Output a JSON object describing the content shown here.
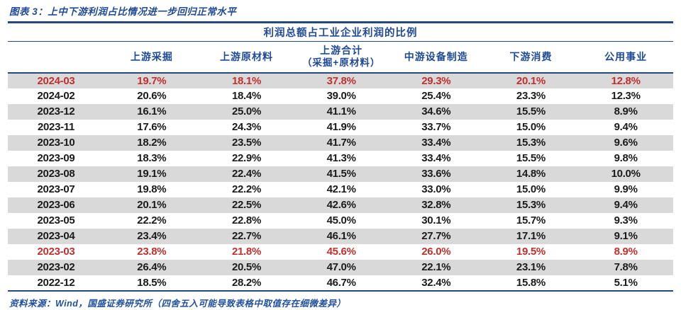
{
  "figure": {
    "title": "图表 3：上中下游利润占比情况进一步回归正常水平",
    "source_note": "资料来源：Wind，国盛证券研究所（四舍五入可能导致表格中取值存在细微差异）"
  },
  "table": {
    "caption": "利润总额占工业企业利润的比例",
    "columns": [
      {
        "label": "上游采掘"
      },
      {
        "label": "上游原材料"
      },
      {
        "label": "上游合计",
        "sub": "（采掘+原材料）"
      },
      {
        "label": "中游设备制造"
      },
      {
        "label": "下游消费"
      },
      {
        "label": "公用事业"
      }
    ],
    "rows": [
      {
        "date": "2024-03",
        "values": [
          "19.7%",
          "18.1%",
          "37.8%",
          "29.3%",
          "20.1%",
          "12.8%"
        ],
        "shaded": true,
        "red": true
      },
      {
        "date": "2024-02",
        "values": [
          "20.6%",
          "18.4%",
          "39.0%",
          "25.4%",
          "23.3%",
          "12.3%"
        ],
        "shaded": false,
        "red": false
      },
      {
        "date": "2023-12",
        "values": [
          "16.1%",
          "25.0%",
          "41.1%",
          "34.6%",
          "15.5%",
          "8.9%"
        ],
        "shaded": true,
        "red": false
      },
      {
        "date": "2023-11",
        "values": [
          "17.6%",
          "24.3%",
          "41.9%",
          "33.7%",
          "15.0%",
          "9.4%"
        ],
        "shaded": false,
        "red": false
      },
      {
        "date": "2023-10",
        "values": [
          "18.2%",
          "23.5%",
          "41.7%",
          "33.4%",
          "15.3%",
          "9.6%"
        ],
        "shaded": true,
        "red": false
      },
      {
        "date": "2023-09",
        "values": [
          "18.3%",
          "22.9%",
          "41.3%",
          "33.4%",
          "15.5%",
          "9.8%"
        ],
        "shaded": false,
        "red": false
      },
      {
        "date": "2023-08",
        "values": [
          "19.1%",
          "22.4%",
          "41.5%",
          "33.6%",
          "14.8%",
          "10.0%"
        ],
        "shaded": true,
        "red": false
      },
      {
        "date": "2023-07",
        "values": [
          "19.8%",
          "22.2%",
          "42.1%",
          "33.0%",
          "15.0%",
          "9.9%"
        ],
        "shaded": false,
        "red": false
      },
      {
        "date": "2023-06",
        "values": [
          "20.1%",
          "22.5%",
          "42.6%",
          "32.8%",
          "15.3%",
          "9.4%"
        ],
        "shaded": true,
        "red": false
      },
      {
        "date": "2023-05",
        "values": [
          "22.2%",
          "22.8%",
          "45.0%",
          "30.1%",
          "15.7%",
          "9.3%"
        ],
        "shaded": false,
        "red": false
      },
      {
        "date": "2023-04",
        "values": [
          "23.4%",
          "22.7%",
          "46.1%",
          "27.7%",
          "17.1%",
          "9.1%"
        ],
        "shaded": true,
        "red": false
      },
      {
        "date": "2023-03",
        "values": [
          "23.8%",
          "21.8%",
          "45.6%",
          "26.0%",
          "19.5%",
          "8.9%"
        ],
        "shaded": false,
        "red": true
      },
      {
        "date": "2023-02",
        "values": [
          "26.4%",
          "20.5%",
          "47.0%",
          "22.1%",
          "23.1%",
          "7.8%"
        ],
        "shaded": true,
        "red": false
      },
      {
        "date": "2022-12",
        "values": [
          "18.5%",
          "28.2%",
          "46.7%",
          "32.4%",
          "15.8%",
          "5.1%"
        ],
        "shaded": false,
        "red": false
      }
    ]
  },
  "colors": {
    "accent_blue": "#1f4a96",
    "rule_blue": "#25497f",
    "highlight_red": "#c2302e",
    "stripe_gray": "#d9d9d9"
  },
  "chart_data": {
    "type": "table",
    "title": "利润总额占工业企业利润的比例",
    "categories": [
      "2024-03",
      "2024-02",
      "2023-12",
      "2023-11",
      "2023-10",
      "2023-09",
      "2023-08",
      "2023-07",
      "2023-06",
      "2023-05",
      "2023-04",
      "2023-03",
      "2023-02",
      "2022-12"
    ],
    "series": [
      {
        "name": "上游采掘",
        "values": [
          19.7,
          20.6,
          16.1,
          17.6,
          18.2,
          18.3,
          19.1,
          19.8,
          20.1,
          22.2,
          23.4,
          23.8,
          26.4,
          18.5
        ]
      },
      {
        "name": "上游原材料",
        "values": [
          18.1,
          18.4,
          25.0,
          24.3,
          23.5,
          22.9,
          22.4,
          22.2,
          22.5,
          22.8,
          22.7,
          21.8,
          20.5,
          28.2
        ]
      },
      {
        "name": "上游合计（采掘+原材料）",
        "values": [
          37.8,
          39.0,
          41.1,
          41.9,
          41.7,
          41.3,
          41.5,
          42.1,
          42.6,
          45.0,
          46.1,
          45.6,
          47.0,
          46.7
        ]
      },
      {
        "name": "中游设备制造",
        "values": [
          29.3,
          25.4,
          34.6,
          33.7,
          33.4,
          33.4,
          33.6,
          33.0,
          32.8,
          30.1,
          27.7,
          26.0,
          22.1,
          32.4
        ]
      },
      {
        "name": "下游消费",
        "values": [
          20.1,
          23.3,
          15.5,
          15.0,
          15.3,
          15.5,
          14.8,
          15.0,
          15.3,
          15.7,
          17.1,
          19.5,
          23.1,
          15.8
        ]
      },
      {
        "name": "公用事业",
        "values": [
          12.8,
          12.3,
          8.9,
          9.4,
          9.6,
          9.8,
          10.0,
          9.9,
          9.4,
          9.3,
          9.1,
          8.9,
          7.8,
          5.1
        ]
      }
    ],
    "unit": "%",
    "notes": "rows 2024-03 and 2023-03 highlighted in red"
  }
}
